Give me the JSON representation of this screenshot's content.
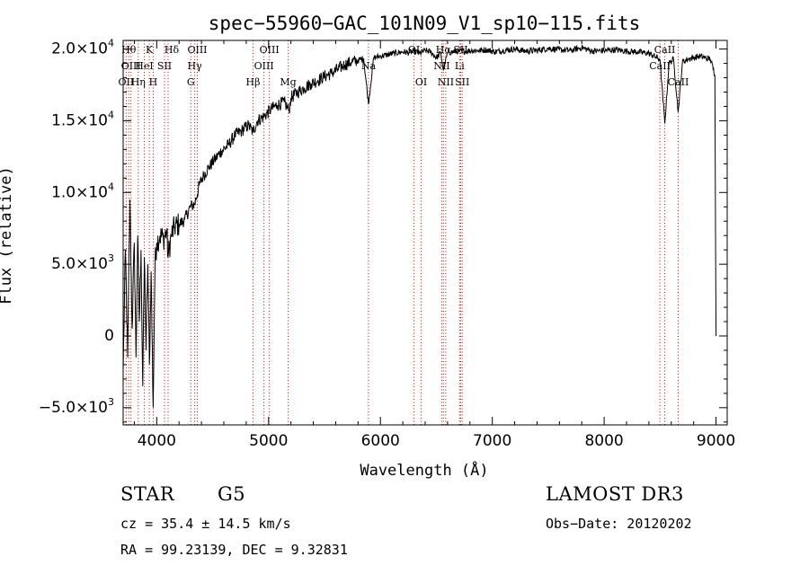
{
  "chart_data": {
    "type": "line",
    "title": "spec−55960−GAC_101N09_V1_sp10−115.fits",
    "xlabel": "Wavelength (Å)",
    "ylabel": "Flux (relative)",
    "xlim": [
      3700,
      9100
    ],
    "ylim": [
      -6200,
      20600
    ],
    "xticks": [
      {
        "value": 4000,
        "label": "4000"
      },
      {
        "value": 5000,
        "label": "5000"
      },
      {
        "value": 6000,
        "label": "6000"
      },
      {
        "value": 7000,
        "label": "7000"
      },
      {
        "value": 8000,
        "label": "8000"
      },
      {
        "value": 9000,
        "label": "9000"
      }
    ],
    "yticks": [
      {
        "value": -5000,
        "mant": "−5.0×10",
        "exp": "3"
      },
      {
        "value": 0,
        "mant": "0",
        "exp": ""
      },
      {
        "value": 5000,
        "mant": "5.0×10",
        "exp": "3"
      },
      {
        "value": 10000,
        "mant": "1.0×10",
        "exp": "4"
      },
      {
        "value": 15000,
        "mant": "1.5×10",
        "exp": "4"
      },
      {
        "value": 20000,
        "mant": "2.0×10",
        "exp": "4"
      }
    ],
    "series": [
      {
        "name": "spectrum",
        "x": [
          3700,
          3720,
          3740,
          3760,
          3780,
          3800,
          3815,
          3830,
          3845,
          3860,
          3875,
          3890,
          3905,
          3920,
          3935,
          3950,
          3968,
          3985,
          4000,
          4030,
          4060,
          4090,
          4101,
          4130,
          4160,
          4200,
          4250,
          4300,
          4340,
          4380,
          4420,
          4470,
          4520,
          4580,
          4640,
          4700,
          4760,
          4820,
          4861,
          4900,
          4960,
          5020,
          5080,
          5140,
          5183,
          5200,
          5260,
          5320,
          5380,
          5440,
          5500,
          5560,
          5620,
          5680,
          5740,
          5800,
          5850,
          5893,
          5940,
          6000,
          6060,
          6120,
          6200,
          6260,
          6300,
          6350,
          6400,
          6450,
          6500,
          6540,
          6563,
          6600,
          6650,
          6700,
          6760,
          6820,
          6880,
          6950,
          7020,
          7100,
          7200,
          7300,
          7400,
          7500,
          7600,
          7700,
          7800,
          7900,
          8000,
          8100,
          8200,
          8300,
          8400,
          8498,
          8542,
          8580,
          8620,
          8662,
          8700,
          8750,
          8800,
          8850,
          8900,
          8950,
          8990,
          9000
        ],
        "y": [
          -2500,
          6000,
          -1500,
          9500,
          500,
          6500,
          -1500,
          7000,
          1000,
          6000,
          -3500,
          5500,
          -1000,
          5000,
          -2000,
          4500,
          -5000,
          5000,
          6500,
          7000,
          6800,
          7300,
          5500,
          7000,
          7600,
          7800,
          8100,
          9000,
          9200,
          10500,
          11200,
          11800,
          12300,
          12900,
          13300,
          14000,
          14300,
          14700,
          14200,
          15000,
          15300,
          15800,
          16100,
          16300,
          15700,
          16600,
          17000,
          17300,
          17600,
          17800,
          18100,
          18300,
          18600,
          18900,
          19100,
          19200,
          19350,
          16200,
          19400,
          19500,
          19600,
          19700,
          19800,
          19750,
          19850,
          19700,
          19900,
          19800,
          19400,
          19700,
          18500,
          19750,
          19800,
          19850,
          19850,
          19900,
          19900,
          19950,
          19800,
          19900,
          20000,
          19850,
          19900,
          20050,
          19950,
          19900,
          20100,
          19850,
          19900,
          19950,
          19850,
          19800,
          19700,
          19300,
          14800,
          19000,
          19300,
          15600,
          19100,
          19300,
          19400,
          19500,
          19400,
          19300,
          18200,
          0
        ]
      }
    ],
    "lines": [
      {
        "x": 3727,
        "label": "OII",
        "row": 2,
        "dx": 0
      },
      {
        "x": 3750,
        "label": "Hθ",
        "row": 0,
        "dx": 0
      },
      {
        "x": 3770,
        "label": "OIII",
        "row": 1,
        "dx": 0
      },
      {
        "x": 3835,
        "label": "Hη",
        "row": 2,
        "dx": 0
      },
      {
        "x": 3889,
        "label": "HeI",
        "row": 1,
        "dx": 0
      },
      {
        "x": 3934,
        "label": "K",
        "row": 0,
        "dx": 0
      },
      {
        "x": 3969,
        "label": "H",
        "row": 2,
        "dx": 0
      },
      {
        "x": 4070,
        "label": "SII",
        "row": 1,
        "dx": 0
      },
      {
        "x": 4102,
        "label": "Hδ",
        "row": 0,
        "dx": 4
      },
      {
        "x": 4305,
        "label": "G",
        "row": 2,
        "dx": 0
      },
      {
        "x": 4340,
        "label": "Hγ",
        "row": 1,
        "dx": 0
      },
      {
        "x": 4363,
        "label": "OIII",
        "row": 0,
        "dx": 0
      },
      {
        "x": 4861,
        "label": "Hβ",
        "row": 2,
        "dx": 0
      },
      {
        "x": 4959,
        "label": "OIII",
        "row": 1,
        "dx": 0
      },
      {
        "x": 5007,
        "label": "OIII",
        "row": 0,
        "dx": 0
      },
      {
        "x": 5175,
        "label": "Mg",
        "row": 2,
        "dx": 0
      },
      {
        "x": 5893,
        "label": "Na",
        "row": 1,
        "dx": 0
      },
      {
        "x": 6300,
        "label": "OI",
        "row": 0,
        "dx": 0
      },
      {
        "x": 6364,
        "label": "OI",
        "row": 2,
        "dx": 0
      },
      {
        "x": 6548,
        "label": "NII",
        "row": 1,
        "dx": 0
      },
      {
        "x": 6563,
        "label": "Hα",
        "row": 0,
        "dx": 0
      },
      {
        "x": 6584,
        "label": "NII",
        "row": 2,
        "dx": 0
      },
      {
        "x": 6708,
        "label": "Li",
        "row": 1,
        "dx": 0
      },
      {
        "x": 6717,
        "label": "SII",
        "row": 0,
        "dx": 0
      },
      {
        "x": 6731,
        "label": "SII",
        "row": 2,
        "dx": 0
      },
      {
        "x": 8498,
        "label": "CaII",
        "row": 1,
        "dx": 0
      },
      {
        "x": 8542,
        "label": "CaII",
        "row": 0,
        "dx": 0
      },
      {
        "x": 8662,
        "label": "CaII",
        "row": 2,
        "dx": 0
      }
    ]
  },
  "info": {
    "object_type": "STAR",
    "subclass": "G5",
    "survey": "LAMOST DR3",
    "cz": "cz = 35.4 ± 14.5 km/s",
    "obs_date": "Obs−Date: 20120202",
    "coords": "RA =  99.23139, DEC =   9.32831"
  }
}
